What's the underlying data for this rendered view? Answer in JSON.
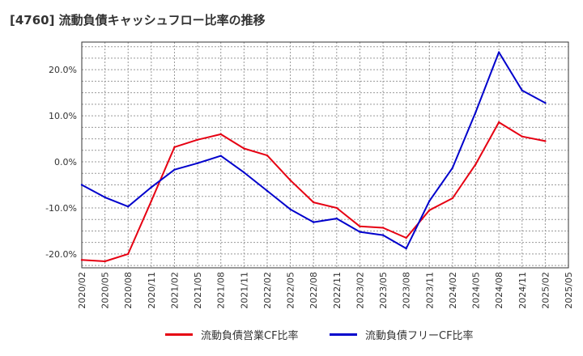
{
  "title": "[4760]  流動負債キャッシュフロー比率の推移",
  "chart_data": {
    "type": "line",
    "title": "[4760]  流動負債キャッシュフロー比率の推移",
    "xlabel": "",
    "ylabel": "",
    "x": [
      "2020/02",
      "2020/05",
      "2020/08",
      "2020/11",
      "2021/02",
      "2021/05",
      "2021/08",
      "2021/11",
      "2022/02",
      "2022/05",
      "2022/08",
      "2022/11",
      "2023/02",
      "2023/05",
      "2023/08",
      "2023/11",
      "2024/02",
      "2024/05",
      "2024/08",
      "2024/11",
      "2025/02",
      "2025/05"
    ],
    "x_ticks": [
      "2020/02",
      "2020/05",
      "2020/08",
      "2020/11",
      "2021/02",
      "2021/05",
      "2021/08",
      "2021/11",
      "2022/02",
      "2022/05",
      "2022/08",
      "2022/11",
      "2023/02",
      "2023/05",
      "2023/08",
      "2023/11",
      "2024/02",
      "2024/05",
      "2024/08",
      "2024/11",
      "2025/02",
      "2025/05"
    ],
    "y_ticks": [
      20,
      10,
      0,
      -10,
      -20
    ],
    "y_tick_labels": [
      "20.0%",
      "10.0%",
      "0.0%",
      "-10.0%",
      "-20.0%"
    ],
    "ylim": [
      -23,
      26
    ],
    "grid": true,
    "legend_position": "bottom",
    "series": [
      {
        "name": "流動負債営業CF比率",
        "color": "#e60012",
        "values": [
          -21.3,
          -21.6,
          -20.0,
          -8.5,
          3.2,
          4.8,
          6.0,
          2.9,
          1.4,
          -4.0,
          -8.8,
          -10.0,
          -14.0,
          -14.3,
          -16.5,
          -10.5,
          -7.9,
          -0.5,
          8.6,
          5.5,
          4.5,
          null
        ]
      },
      {
        "name": "流動負債フリーCF比率",
        "color": "#0000cc",
        "values": [
          -5.0,
          -7.7,
          -9.7,
          -5.5,
          -1.7,
          -0.3,
          1.3,
          -2.3,
          -6.3,
          -10.3,
          -13.1,
          -12.3,
          -15.2,
          -15.9,
          -18.8,
          -8.5,
          -1.3,
          10.8,
          23.8,
          15.5,
          12.8,
          null
        ]
      }
    ]
  }
}
